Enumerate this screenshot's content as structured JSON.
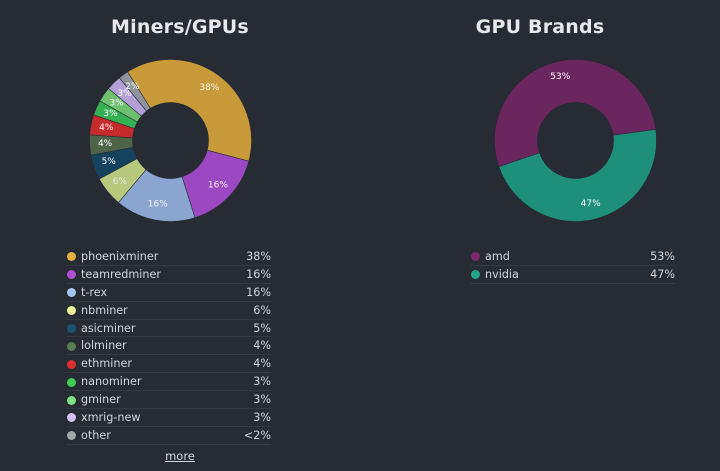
{
  "chart_data": [
    {
      "type": "pie",
      "title": "Miners/GPUs",
      "categories": [
        "phoenixminer",
        "teamredminer",
        "t-rex",
        "nbminer",
        "asicminer",
        "lolminer",
        "ethminer",
        "nanominer",
        "gminer",
        "xmrig-new",
        "other"
      ],
      "values": [
        38,
        16,
        16,
        6,
        5,
        4,
        4,
        3,
        3,
        3,
        2
      ],
      "slice_labels": [
        "38%",
        "16%",
        "16%",
        "6%",
        "5%",
        "4%",
        "4%",
        "3%",
        "3%",
        "3%",
        "2%"
      ],
      "legend_values": [
        "38%",
        "16%",
        "16%",
        "6%",
        "5%",
        "4%",
        "4%",
        "3%",
        "3%",
        "3%",
        "<2%"
      ],
      "colors": [
        "#c99a3a",
        "#9b48c2",
        "#8aa5cf",
        "#b8c97e",
        "#15425f",
        "#4d6449",
        "#c52b2b",
        "#35b052",
        "#6dc06e",
        "#b49ed6",
        "#8f949c"
      ],
      "legend_colors": [
        "#e5b23d",
        "#b14fd4",
        "#a6c6ef",
        "#eaf29a",
        "#1c5475",
        "#5b7b55",
        "#d9302f",
        "#3fcc55",
        "#7fe08a",
        "#d4c1f2",
        "#a3a6ab"
      ],
      "label_colors": [
        "#f2f2f2",
        "#f2f2f2",
        "#f2f2f2",
        "#e8e8e8",
        "#ffffff",
        "#ffffff",
        "#ffffff",
        "#ffffff",
        "#ffffff",
        "#ffffff",
        "#ffffff"
      ],
      "donut": true,
      "more_label": "more"
    },
    {
      "type": "pie",
      "title": "GPU Brands",
      "categories": [
        "amd",
        "nvidia"
      ],
      "values": [
        53,
        47
      ],
      "slice_labels": [
        "53%",
        "47%"
      ],
      "legend_values": [
        "53%",
        "47%"
      ],
      "colors": [
        "#6b2660",
        "#1e8f7b"
      ],
      "legend_colors": [
        "#7a2a6e",
        "#22a58d"
      ],
      "label_colors": [
        "#ffffff",
        "#ffffff"
      ],
      "donut": true
    }
  ]
}
